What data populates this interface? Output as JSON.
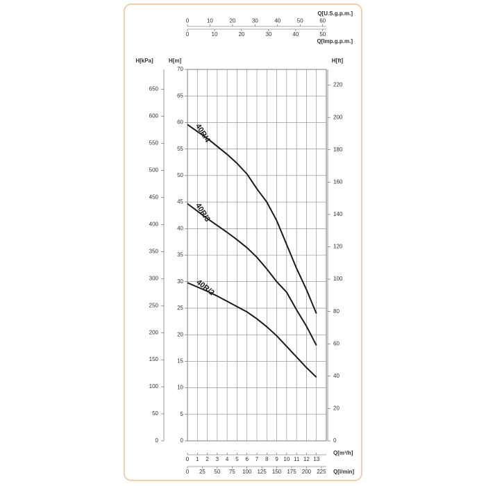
{
  "chart_data": {
    "type": "line",
    "x": [
      0,
      1,
      2,
      3,
      4,
      5,
      6,
      7,
      8,
      9,
      10,
      11,
      12,
      13
    ],
    "x_label": "Q[m³/h]",
    "xlim": [
      0,
      14
    ],
    "xticks": [
      0,
      1,
      2,
      3,
      4,
      5,
      6,
      7,
      8,
      9,
      10,
      11,
      12,
      13
    ],
    "y_label": "H[m]",
    "ylim": [
      0,
      70
    ],
    "yticks": [
      0,
      5,
      10,
      15,
      20,
      25,
      30,
      35,
      40,
      45,
      50,
      55,
      60,
      65,
      70
    ],
    "grid": true,
    "secondary_axes": [
      {
        "label": "H[kPa]",
        "side": "left",
        "lim": [
          0,
          686.7
        ],
        "ticks": [
          0,
          50,
          100,
          150,
          200,
          250,
          300,
          350,
          400,
          450,
          500,
          550,
          600,
          650
        ]
      },
      {
        "label": "H[ft]",
        "side": "right",
        "lim": [
          0,
          229.7
        ],
        "ticks": [
          0,
          20,
          40,
          60,
          80,
          100,
          120,
          140,
          160,
          180,
          200,
          220
        ]
      },
      {
        "label": "Q[l/min]",
        "side": "bottom",
        "lim": [
          0,
          233.3
        ],
        "ticks": [
          0,
          25,
          50,
          75,
          100,
          125,
          150,
          175,
          200,
          225
        ]
      },
      {
        "label": "Q[U.S.g.p.m.]",
        "side": "top",
        "lim": [
          0,
          61.64
        ],
        "ticks": [
          0,
          10,
          20,
          30,
          40,
          50,
          60
        ]
      },
      {
        "label": "Q[Imp.g.p.m.]",
        "side": "top",
        "lim": [
          0,
          51.33
        ],
        "ticks": [
          0,
          10,
          20,
          30,
          40,
          50
        ]
      }
    ],
    "series": [
      {
        "name": "40R/4",
        "color": "#1a1a1a",
        "values": [
          59.6,
          58.3,
          57,
          55.5,
          54,
          52.3,
          50.3,
          47.5,
          45,
          41.5,
          37,
          32.5,
          28.5,
          24
        ]
      },
      {
        "name": "40R/3",
        "color": "#1a1a1a",
        "values": [
          44.7,
          43.3,
          41.9,
          40.6,
          39.3,
          37.9,
          36.4,
          34.6,
          32.4,
          30,
          28,
          24.7,
          21.6,
          18
        ]
      },
      {
        "name": "40R/2",
        "color": "#1a1a1a",
        "values": [
          29.8,
          29,
          28.2,
          27.3,
          26.3,
          25.3,
          24.3,
          23,
          21.5,
          19.8,
          17.8,
          15.8,
          13.8,
          12
        ]
      }
    ]
  }
}
